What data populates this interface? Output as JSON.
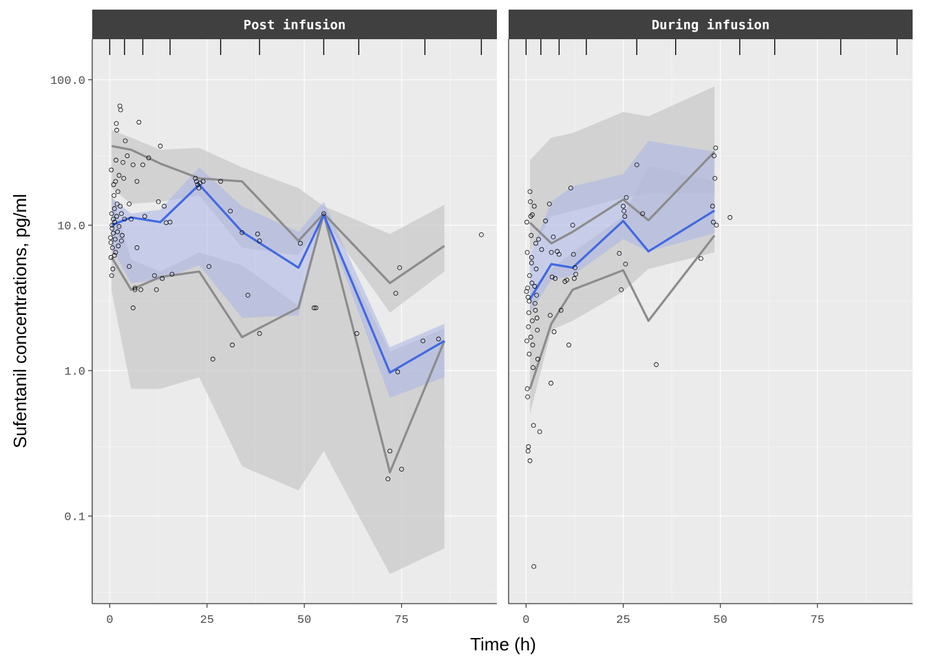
{
  "chart_data": {
    "type": "line",
    "xlabel": "Time (h)",
    "ylabel": "Sufentanil concentrations, pg/ml",
    "y_scale": "log10",
    "ylim": [
      0.025,
      190
    ],
    "xlim": [
      -4.5,
      99.5
    ],
    "x_ticks": [
      0,
      25,
      50,
      75
    ],
    "y_ticks": [
      0.1,
      1.0,
      10.0,
      100.0
    ],
    "y_tick_labels": [
      "0.1",
      "1.0",
      "10.0",
      "100.0"
    ],
    "grid": true,
    "colors": {
      "panel_bg": "#ebebeb",
      "strip_bg": "#404040",
      "median_line": "#4169e1",
      "percentile_line": "#8c8c8c",
      "pi_band_grey": "#c8c8c8",
      "median_band_blue": "#aab4e6"
    },
    "panels": [
      {
        "label": "Post infusion",
        "bin_edges": [
          0,
          3.8,
          8.5,
          15.5,
          28.5,
          38.5,
          55,
          64,
          81,
          95.5
        ],
        "x": [
          0.5,
          5.5,
          13,
          23,
          34,
          48.5,
          55,
          72,
          86
        ],
        "obs_median": [
          10.0,
          11.3,
          10.5,
          19.0,
          9.0,
          5.1,
          11.8,
          0.97,
          1.6
        ],
        "obs_p95": [
          35,
          33,
          26.5,
          21,
          20,
          7.8,
          12,
          4.0,
          7.2
        ],
        "obs_p5": [
          6.0,
          3.6,
          4.4,
          4.8,
          1.7,
          2.7,
          12,
          0.2,
          1.6
        ],
        "median_ci": {
          "lo": [
            7.0,
            4.0,
            4.2,
            5.3,
            2.3,
            2.4,
            11.3,
            0.65,
            0.9
          ],
          "hi": [
            15.5,
            12.0,
            12.8,
            25.0,
            13.5,
            9.0,
            14.5,
            1.45,
            2.1
          ]
        },
        "p95_ci": {
          "lo": [
            18,
            14,
            14.5,
            16,
            7.0,
            6.2,
            11,
            2.5,
            4.8
          ],
          "hi": [
            45,
            40,
            33,
            34,
            25,
            18,
            13.5,
            8.7,
            13.8
          ]
        },
        "p5_ci": {
          "lo": [
            3.5,
            0.75,
            0.75,
            0.9,
            0.22,
            0.15,
            0.28,
            0.04,
            0.06
          ],
          "hi": [
            16.5,
            5.8,
            4.8,
            6.5,
            5.3,
            2.8,
            11.2,
            1.35,
            1.95
          ]
        },
        "observations": [
          [
            0.2,
            8.2
          ],
          [
            0.3,
            6.0
          ],
          [
            0.4,
            24
          ],
          [
            0.5,
            12
          ],
          [
            0.6,
            9.5
          ],
          [
            0.7,
            7.0
          ],
          [
            0.8,
            5.0
          ],
          [
            0.9,
            11
          ],
          [
            0.5,
            4.5
          ],
          [
            1.0,
            19
          ],
          [
            1.1,
            16
          ],
          [
            1.2,
            13
          ],
          [
            1.3,
            10.5
          ],
          [
            1.4,
            8
          ],
          [
            1.5,
            6.5
          ],
          [
            1.6,
            28
          ],
          [
            1.7,
            50
          ],
          [
            1.8,
            45
          ],
          [
            1.9,
            14
          ],
          [
            2.0,
            9
          ],
          [
            2.2,
            7.2
          ],
          [
            2.4,
            22
          ],
          [
            2.6,
            66
          ],
          [
            2.8,
            62
          ],
          [
            3.0,
            12
          ],
          [
            3.2,
            8.5
          ],
          [
            3.4,
            27
          ],
          [
            3.6,
            21
          ],
          [
            3.8,
            11
          ],
          [
            4.0,
            38
          ],
          [
            0.3,
            7.6
          ],
          [
            0.6,
            10
          ],
          [
            0.9,
            8.8
          ],
          [
            1.2,
            6.2
          ],
          [
            1.5,
            20
          ],
          [
            1.8,
            11.5
          ],
          [
            2.1,
            17
          ],
          [
            2.4,
            9.8
          ],
          [
            2.7,
            13.5
          ],
          [
            3.0,
            7.8
          ],
          [
            4.5,
            30
          ],
          [
            5.0,
            14
          ],
          [
            5.5,
            11
          ],
          [
            6.0,
            26
          ],
          [
            6.5,
            3.7
          ],
          [
            7.0,
            20
          ],
          [
            7.0,
            7.0
          ],
          [
            7.5,
            51
          ],
          [
            8.0,
            3.6
          ],
          [
            8.5,
            26
          ],
          [
            9.0,
            11.5
          ],
          [
            10.0,
            29
          ],
          [
            11.5,
            4.5
          ],
          [
            12.0,
            3.6
          ],
          [
            12.5,
            14.5
          ],
          [
            13.0,
            35
          ],
          [
            13.5,
            4.3
          ],
          [
            14.0,
            13.5
          ],
          [
            14.5,
            10.4
          ],
          [
            15.5,
            10.5
          ],
          [
            16.0,
            4.6
          ],
          [
            5.0,
            5.2
          ],
          [
            6.0,
            2.7
          ],
          [
            6.5,
            3.6
          ],
          [
            22.0,
            21
          ],
          [
            22.3,
            20
          ],
          [
            22.6,
            19
          ],
          [
            22.9,
            18
          ],
          [
            23.2,
            19.5
          ],
          [
            24.0,
            20
          ],
          [
            25.5,
            5.2
          ],
          [
            26.5,
            1.2
          ],
          [
            28.5,
            20
          ],
          [
            31.0,
            12.5
          ],
          [
            31.5,
            1.5
          ],
          [
            34.0,
            8.9
          ],
          [
            35.5,
            3.3
          ],
          [
            38.0,
            8.7
          ],
          [
            38.5,
            7.8
          ],
          [
            38.5,
            1.8
          ],
          [
            49.0,
            7.5
          ],
          [
            52.5,
            2.7
          ],
          [
            53.0,
            2.7
          ],
          [
            55.0,
            12
          ],
          [
            63.5,
            1.8
          ],
          [
            71.5,
            0.18
          ],
          [
            72.0,
            0.28
          ],
          [
            73.5,
            3.4
          ],
          [
            74.0,
            0.98
          ],
          [
            74.5,
            5.1
          ],
          [
            75.0,
            0.21
          ],
          [
            80.5,
            1.6
          ],
          [
            84.5,
            1.65
          ],
          [
            95.5,
            8.6
          ]
        ]
      },
      {
        "label": "During infusion",
        "bin_edges": [
          0,
          3.8,
          8.5,
          15.5,
          28.5,
          38.5,
          55,
          64,
          81,
          95.5
        ],
        "x": [
          1,
          6.5,
          12,
          25,
          31.5,
          48.5
        ],
        "obs_median": [
          3.1,
          5.4,
          5.1,
          10.7,
          6.6,
          12.6
        ],
        "obs_p95": [
          10.4,
          7.5,
          9.0,
          15.0,
          10.8,
          32
        ],
        "obs_p5": [
          0.75,
          2.1,
          3.6,
          4.9,
          2.2,
          8.5
        ],
        "median_ci": {
          "lo": [
            2.5,
            4.2,
            4.5,
            8.0,
            6.6,
            8.8
          ],
          "hi": [
            6.2,
            14.5,
            18.5,
            22.5,
            38,
            32
          ]
        },
        "p95_ci": {
          "lo": [
            6.5,
            11.5,
            12.5,
            15.5,
            16.5,
            16.5
          ],
          "hi": [
            28,
            40,
            43,
            60,
            56,
            90
          ]
        },
        "p5_ci": {
          "lo": [
            0.5,
            1.9,
            2.2,
            3.5,
            5.0,
            6.5
          ],
          "hi": [
            3.6,
            5.0,
            6.5,
            11.5,
            25.5,
            20
          ]
        }
      }
    ]
  },
  "during_infusion_observations": [
    [
      0.1,
      3.5
    ],
    [
      0.2,
      1.6
    ],
    [
      0.3,
      0.75
    ],
    [
      0.4,
      0.66
    ],
    [
      0.5,
      0.28
    ],
    [
      0.6,
      0.3
    ],
    [
      0.7,
      2.5
    ],
    [
      0.8,
      3.0
    ],
    [
      0.9,
      4.5
    ],
    [
      1.0,
      17
    ],
    [
      1.1,
      14.5
    ],
    [
      1.2,
      11.5
    ],
    [
      1.3,
      8.5
    ],
    [
      1.4,
      6.0
    ],
    [
      1.5,
      4.0
    ],
    [
      1.6,
      2.2
    ],
    [
      1.7,
      1.5
    ],
    [
      1.8,
      1.05
    ],
    [
      1.9,
      0.42
    ],
    [
      2.0,
      0.045
    ],
    [
      2.1,
      13.5
    ],
    [
      2.2,
      3.8
    ],
    [
      2.3,
      2.9
    ],
    [
      2.4,
      2.6
    ],
    [
      2.5,
      7.5
    ],
    [
      2.6,
      5.0
    ],
    [
      2.7,
      3.3
    ],
    [
      2.8,
      2.3
    ],
    [
      2.9,
      1.9
    ],
    [
      3.0,
      1.2
    ],
    [
      0.2,
      10.5
    ],
    [
      0.3,
      6.5
    ],
    [
      0.4,
      3.7
    ],
    [
      0.5,
      3.2
    ],
    [
      0.6,
      2.0
    ],
    [
      0.8,
      1.3
    ],
    [
      1.0,
      0.24
    ],
    [
      1.2,
      1.7
    ],
    [
      1.4,
      5.5
    ],
    [
      1.6,
      11.8
    ],
    [
      3.2,
      8.0
    ],
    [
      3.5,
      0.38
    ],
    [
      4.0,
      6.8
    ],
    [
      5.0,
      10.7
    ],
    [
      6.0,
      14
    ],
    [
      6.2,
      2.4
    ],
    [
      6.4,
      0.82
    ],
    [
      6.5,
      6.5
    ],
    [
      6.7,
      4.4
    ],
    [
      7.0,
      8.3
    ],
    [
      7.2,
      1.85
    ],
    [
      7.5,
      4.3
    ],
    [
      8.0,
      6.6
    ],
    [
      8.5,
      6.3
    ],
    [
      9.0,
      2.6
    ],
    [
      10.0,
      4.1
    ],
    [
      10.5,
      4.2
    ],
    [
      11.0,
      1.5
    ],
    [
      11.5,
      18
    ],
    [
      12.0,
      10.0
    ],
    [
      12.2,
      6.3
    ],
    [
      12.4,
      4.3
    ],
    [
      12.6,
      5.1
    ],
    [
      12.8,
      4.6
    ],
    [
      24.0,
      6.4
    ],
    [
      24.5,
      3.6
    ],
    [
      25.0,
      13.5
    ],
    [
      25.2,
      12.5
    ],
    [
      25.4,
      11.5
    ],
    [
      25.6,
      5.4
    ],
    [
      25.8,
      15.5
    ],
    [
      28.5,
      26
    ],
    [
      30.0,
      12
    ],
    [
      33.5,
      1.1
    ],
    [
      45.0,
      5.9
    ],
    [
      48.0,
      13.5
    ],
    [
      48.2,
      10.5
    ],
    [
      48.4,
      30
    ],
    [
      48.6,
      21
    ],
    [
      48.8,
      34
    ],
    [
      49.0,
      10.0
    ],
    [
      52.5,
      11.3
    ]
  ]
}
